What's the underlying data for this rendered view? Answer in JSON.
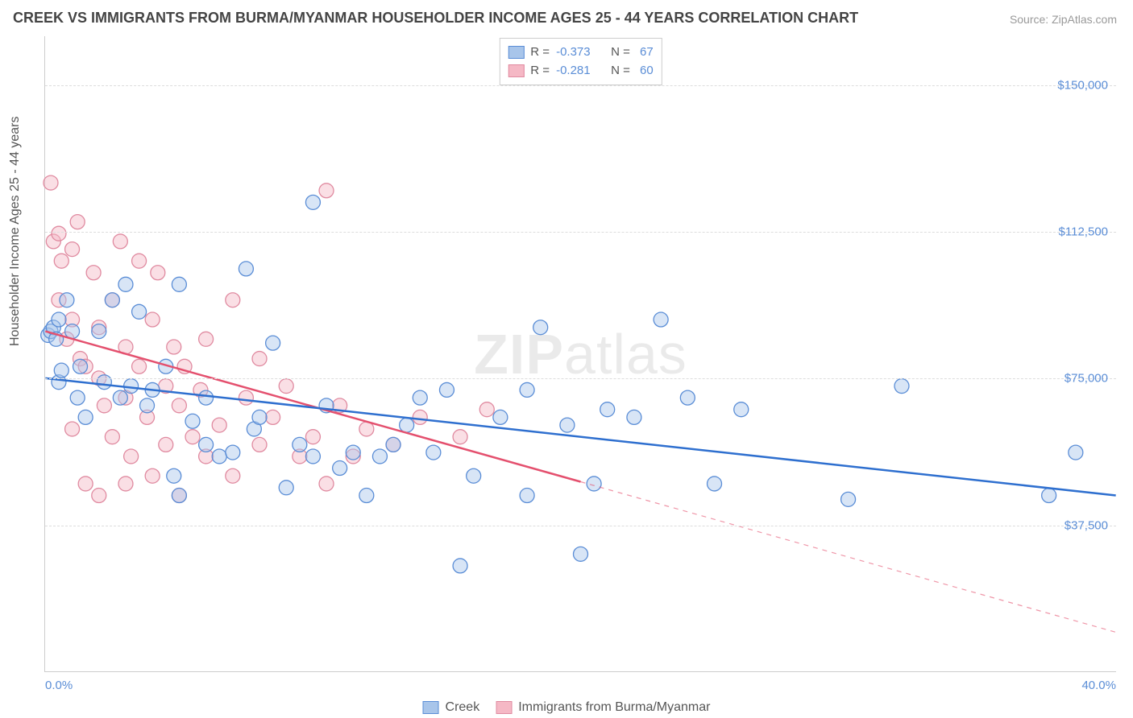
{
  "title": "CREEK VS IMMIGRANTS FROM BURMA/MYANMAR HOUSEHOLDER INCOME AGES 25 - 44 YEARS CORRELATION CHART",
  "source_label": "Source: ZipAtlas.com",
  "y_axis_label": "Householder Income Ages 25 - 44 years",
  "watermark": "ZIPatlas",
  "chart": {
    "type": "scatter",
    "xlim": [
      0,
      40
    ],
    "ylim": [
      0,
      162500
    ],
    "x_tick_min_label": "0.0%",
    "x_tick_max_label": "40.0%",
    "y_ticks": [
      37500,
      75000,
      112500,
      150000
    ],
    "y_tick_labels": [
      "$37,500",
      "$75,000",
      "$112,500",
      "$150,000"
    ],
    "grid_color": "#dddddd",
    "background_color": "#ffffff",
    "axis_color": "#cccccc",
    "tick_label_color": "#5a8dd6",
    "marker_radius": 9,
    "marker_opacity": 0.45,
    "line_width": 2.5,
    "series": [
      {
        "name": "Creek",
        "color_fill": "#a8c5ea",
        "color_stroke": "#5a8dd6",
        "line_color": "#2e6fcf",
        "r": -0.373,
        "n": 67,
        "points": [
          [
            0.1,
            86000
          ],
          [
            0.2,
            87000
          ],
          [
            0.3,
            88000
          ],
          [
            0.4,
            85000
          ],
          [
            0.5,
            74000
          ],
          [
            0.6,
            77000
          ],
          [
            0.5,
            90000
          ],
          [
            0.8,
            95000
          ],
          [
            1.0,
            87000
          ],
          [
            1.2,
            70000
          ],
          [
            1.3,
            78000
          ],
          [
            1.5,
            65000
          ],
          [
            2.0,
            87000
          ],
          [
            2.2,
            74000
          ],
          [
            2.5,
            95000
          ],
          [
            2.8,
            70000
          ],
          [
            3.0,
            99000
          ],
          [
            3.5,
            92000
          ],
          [
            3.2,
            73000
          ],
          [
            3.8,
            68000
          ],
          [
            4.0,
            72000
          ],
          [
            4.5,
            78000
          ],
          [
            4.8,
            50000
          ],
          [
            5.0,
            99000
          ],
          [
            5.0,
            45000
          ],
          [
            5.5,
            64000
          ],
          [
            6.0,
            58000
          ],
          [
            6.0,
            70000
          ],
          [
            6.5,
            55000
          ],
          [
            7.0,
            56000
          ],
          [
            7.5,
            103000
          ],
          [
            7.8,
            62000
          ],
          [
            8.0,
            65000
          ],
          [
            8.5,
            84000
          ],
          [
            9.0,
            47000
          ],
          [
            9.5,
            58000
          ],
          [
            10.0,
            120000
          ],
          [
            10.0,
            55000
          ],
          [
            10.5,
            68000
          ],
          [
            11.0,
            52000
          ],
          [
            11.5,
            56000
          ],
          [
            12.0,
            45000
          ],
          [
            12.5,
            55000
          ],
          [
            13.0,
            58000
          ],
          [
            13.5,
            63000
          ],
          [
            14.0,
            70000
          ],
          [
            14.5,
            56000
          ],
          [
            15.0,
            72000
          ],
          [
            15.5,
            27000
          ],
          [
            16.0,
            50000
          ],
          [
            17.0,
            65000
          ],
          [
            18.0,
            72000
          ],
          [
            18.5,
            88000
          ],
          [
            19.5,
            63000
          ],
          [
            20.0,
            30000
          ],
          [
            20.5,
            48000
          ],
          [
            21.0,
            67000
          ],
          [
            22.0,
            65000
          ],
          [
            23.0,
            90000
          ],
          [
            24.0,
            70000
          ],
          [
            25.0,
            48000
          ],
          [
            26.0,
            67000
          ],
          [
            30.0,
            44000
          ],
          [
            32.0,
            73000
          ],
          [
            37.5,
            45000
          ],
          [
            38.5,
            56000
          ],
          [
            18.0,
            45000
          ]
        ],
        "trend": {
          "x1": 0,
          "y1": 75000,
          "x2": 40,
          "y2": 45000,
          "solid_until_x": 40
        }
      },
      {
        "name": "Immigrants from Burma/Myanmar",
        "color_fill": "#f5b8c5",
        "color_stroke": "#e08aa0",
        "line_color": "#e4506e",
        "r": -0.281,
        "n": 60,
        "points": [
          [
            0.2,
            125000
          ],
          [
            0.3,
            110000
          ],
          [
            0.5,
            112000
          ],
          [
            0.5,
            95000
          ],
          [
            0.6,
            105000
          ],
          [
            0.8,
            85000
          ],
          [
            1.0,
            108000
          ],
          [
            1.0,
            90000
          ],
          [
            1.2,
            115000
          ],
          [
            1.3,
            80000
          ],
          [
            1.5,
            78000
          ],
          [
            1.5,
            48000
          ],
          [
            1.8,
            102000
          ],
          [
            2.0,
            88000
          ],
          [
            2.0,
            75000
          ],
          [
            2.2,
            68000
          ],
          [
            2.5,
            95000
          ],
          [
            2.5,
            60000
          ],
          [
            2.8,
            110000
          ],
          [
            3.0,
            83000
          ],
          [
            3.0,
            70000
          ],
          [
            3.2,
            55000
          ],
          [
            3.5,
            105000
          ],
          [
            3.5,
            78000
          ],
          [
            3.8,
            65000
          ],
          [
            4.0,
            90000
          ],
          [
            4.0,
            50000
          ],
          [
            4.2,
            102000
          ],
          [
            4.5,
            73000
          ],
          [
            4.5,
            58000
          ],
          [
            4.8,
            83000
          ],
          [
            5.0,
            68000
          ],
          [
            5.0,
            45000
          ],
          [
            5.2,
            78000
          ],
          [
            5.5,
            60000
          ],
          [
            5.8,
            72000
          ],
          [
            6.0,
            55000
          ],
          [
            6.0,
            85000
          ],
          [
            6.5,
            63000
          ],
          [
            7.0,
            95000
          ],
          [
            7.0,
            50000
          ],
          [
            7.5,
            70000
          ],
          [
            8.0,
            58000
          ],
          [
            8.0,
            80000
          ],
          [
            8.5,
            65000
          ],
          [
            9.0,
            73000
          ],
          [
            9.5,
            55000
          ],
          [
            10.0,
            60000
          ],
          [
            10.5,
            123000
          ],
          [
            10.5,
            48000
          ],
          [
            11.0,
            68000
          ],
          [
            11.5,
            55000
          ],
          [
            12.0,
            62000
          ],
          [
            13.0,
            58000
          ],
          [
            14.0,
            65000
          ],
          [
            15.5,
            60000
          ],
          [
            16.5,
            67000
          ],
          [
            2.0,
            45000
          ],
          [
            3.0,
            48000
          ],
          [
            1.0,
            62000
          ]
        ],
        "trend": {
          "x1": 0,
          "y1": 87000,
          "x2": 40,
          "y2": 10000,
          "solid_until_x": 20
        }
      }
    ]
  },
  "legend_top": {
    "r_label": "R =",
    "n_label": "N ="
  },
  "legend_bottom_labels": [
    "Creek",
    "Immigrants from Burma/Myanmar"
  ]
}
